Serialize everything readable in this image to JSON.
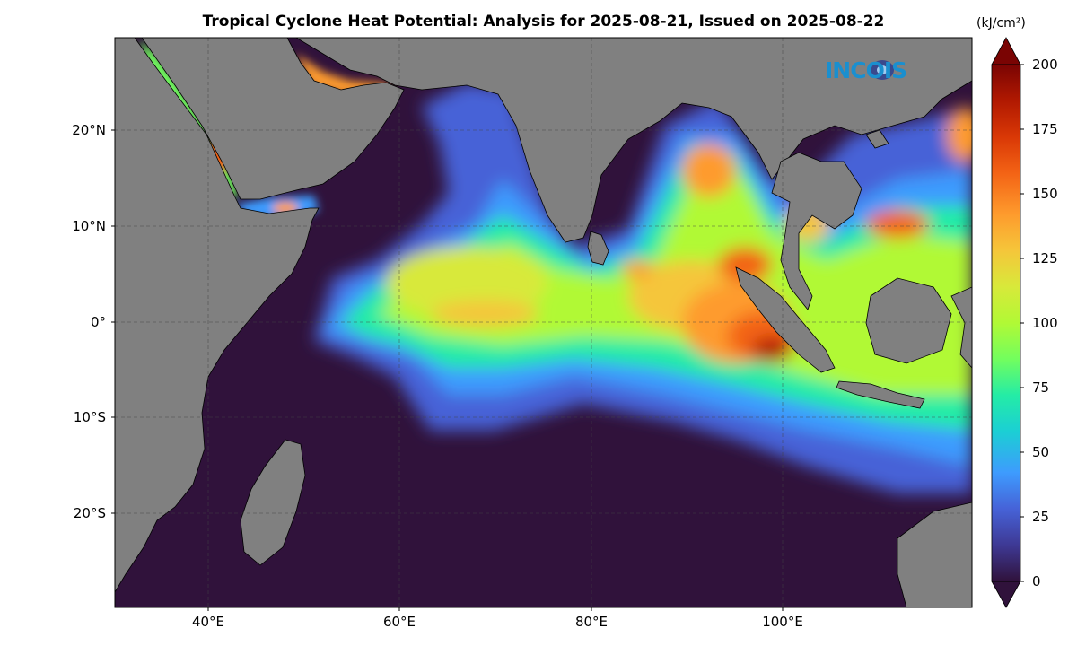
{
  "title": "Tropical Cyclone Heat Potential: Analysis for 2025-08-21, Issued on 2025-08-22",
  "logo_text": "INCOIS",
  "colorbar": {
    "unit": "(kJ/cm²)",
    "ticks": [
      "0",
      "25",
      "50",
      "75",
      "100",
      "125",
      "150",
      "175",
      "200"
    ],
    "range": [
      0,
      200
    ],
    "colors": [
      "#30123b",
      "#3e3994",
      "#4662d7",
      "#3e9bfe",
      "#1bcfd4",
      "#24eca6",
      "#72fe5e",
      "#b1f935",
      "#d8e93a",
      "#f5c63a",
      "#fe9b2d",
      "#f36315",
      "#d93806",
      "#b11901",
      "#7a0403"
    ]
  },
  "axes": {
    "lat_labels": [
      "20°N",
      "10°N",
      "0°",
      "10°S",
      "20°S"
    ],
    "lon_labels": [
      "40°E",
      "60°E",
      "80°E",
      "100°E"
    ]
  },
  "land_color": "#808080",
  "ocean_low_color": "#30123b"
}
